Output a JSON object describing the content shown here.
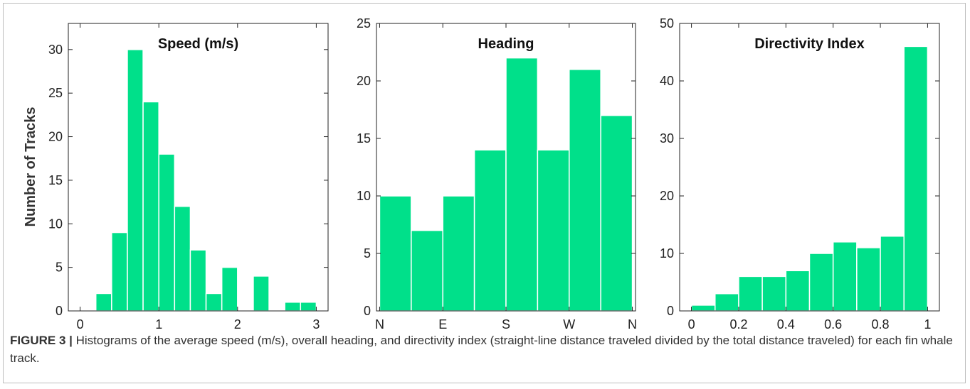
{
  "colors": {
    "bar": "#00e08a",
    "bar_edge": "#ffffff",
    "axis": "#222222"
  },
  "ylabel": "Number of Tracks",
  "caption": {
    "label": "FIGURE 3 |",
    "text": " Histograms of the average speed (m/s), overall heading, and directivity index (straight-line distance traveled divided by the total distance traveled) for each fin whale track."
  },
  "chart_data": [
    {
      "type": "bar",
      "title": "Speed (m/s)",
      "xlim": [
        -0.15,
        3.15
      ],
      "ylim": [
        0,
        33
      ],
      "xticks": [
        0,
        1,
        2,
        3
      ],
      "xticklabels": [
        "0",
        "1",
        "2",
        "3"
      ],
      "yticks": [
        0,
        5,
        10,
        15,
        20,
        25,
        30
      ],
      "bin_width": 0.2,
      "bins": [
        {
          "x0": 0.2,
          "value": 2
        },
        {
          "x0": 0.4,
          "value": 9
        },
        {
          "x0": 0.6,
          "value": 30
        },
        {
          "x0": 0.8,
          "value": 24
        },
        {
          "x0": 1.0,
          "value": 18
        },
        {
          "x0": 1.2,
          "value": 12
        },
        {
          "x0": 1.4,
          "value": 7
        },
        {
          "x0": 1.6,
          "value": 2
        },
        {
          "x0": 1.8,
          "value": 5
        },
        {
          "x0": 2.2,
          "value": 4
        },
        {
          "x0": 2.6,
          "value": 1
        },
        {
          "x0": 2.8,
          "value": 1
        }
      ]
    },
    {
      "type": "bar",
      "title": "Heading",
      "xlim": [
        -0.1,
        8.1
      ],
      "ylim": [
        0,
        25
      ],
      "xticks": [
        0,
        2,
        4,
        6,
        8
      ],
      "xticklabels": [
        "N",
        "E",
        "S",
        "W",
        "N"
      ],
      "yticks": [
        0,
        5,
        10,
        15,
        20,
        25
      ],
      "bin_width": 1,
      "bins": [
        {
          "x0": 0,
          "value": 10
        },
        {
          "x0": 1,
          "value": 7
        },
        {
          "x0": 2,
          "value": 10
        },
        {
          "x0": 3,
          "value": 14
        },
        {
          "x0": 4,
          "value": 22
        },
        {
          "x0": 5,
          "value": 14
        },
        {
          "x0": 6,
          "value": 21
        },
        {
          "x0": 7,
          "value": 17
        }
      ]
    },
    {
      "type": "bar",
      "title": "Directivity Index",
      "xlim": [
        -0.05,
        1.05
      ],
      "ylim": [
        0,
        50
      ],
      "xticks": [
        0,
        0.2,
        0.4,
        0.6,
        0.8,
        1
      ],
      "xticklabels": [
        "0",
        "0.2",
        "0.4",
        "0.6",
        "0.8",
        "1"
      ],
      "yticks": [
        0,
        10,
        20,
        30,
        40,
        50
      ],
      "bin_width": 0.1,
      "bins": [
        {
          "x0": 0.0,
          "value": 1
        },
        {
          "x0": 0.1,
          "value": 3
        },
        {
          "x0": 0.2,
          "value": 6
        },
        {
          "x0": 0.3,
          "value": 6
        },
        {
          "x0": 0.4,
          "value": 7
        },
        {
          "x0": 0.5,
          "value": 10
        },
        {
          "x0": 0.6,
          "value": 12
        },
        {
          "x0": 0.7,
          "value": 11
        },
        {
          "x0": 0.8,
          "value": 13
        },
        {
          "x0": 0.9,
          "value": 46
        }
      ]
    }
  ]
}
